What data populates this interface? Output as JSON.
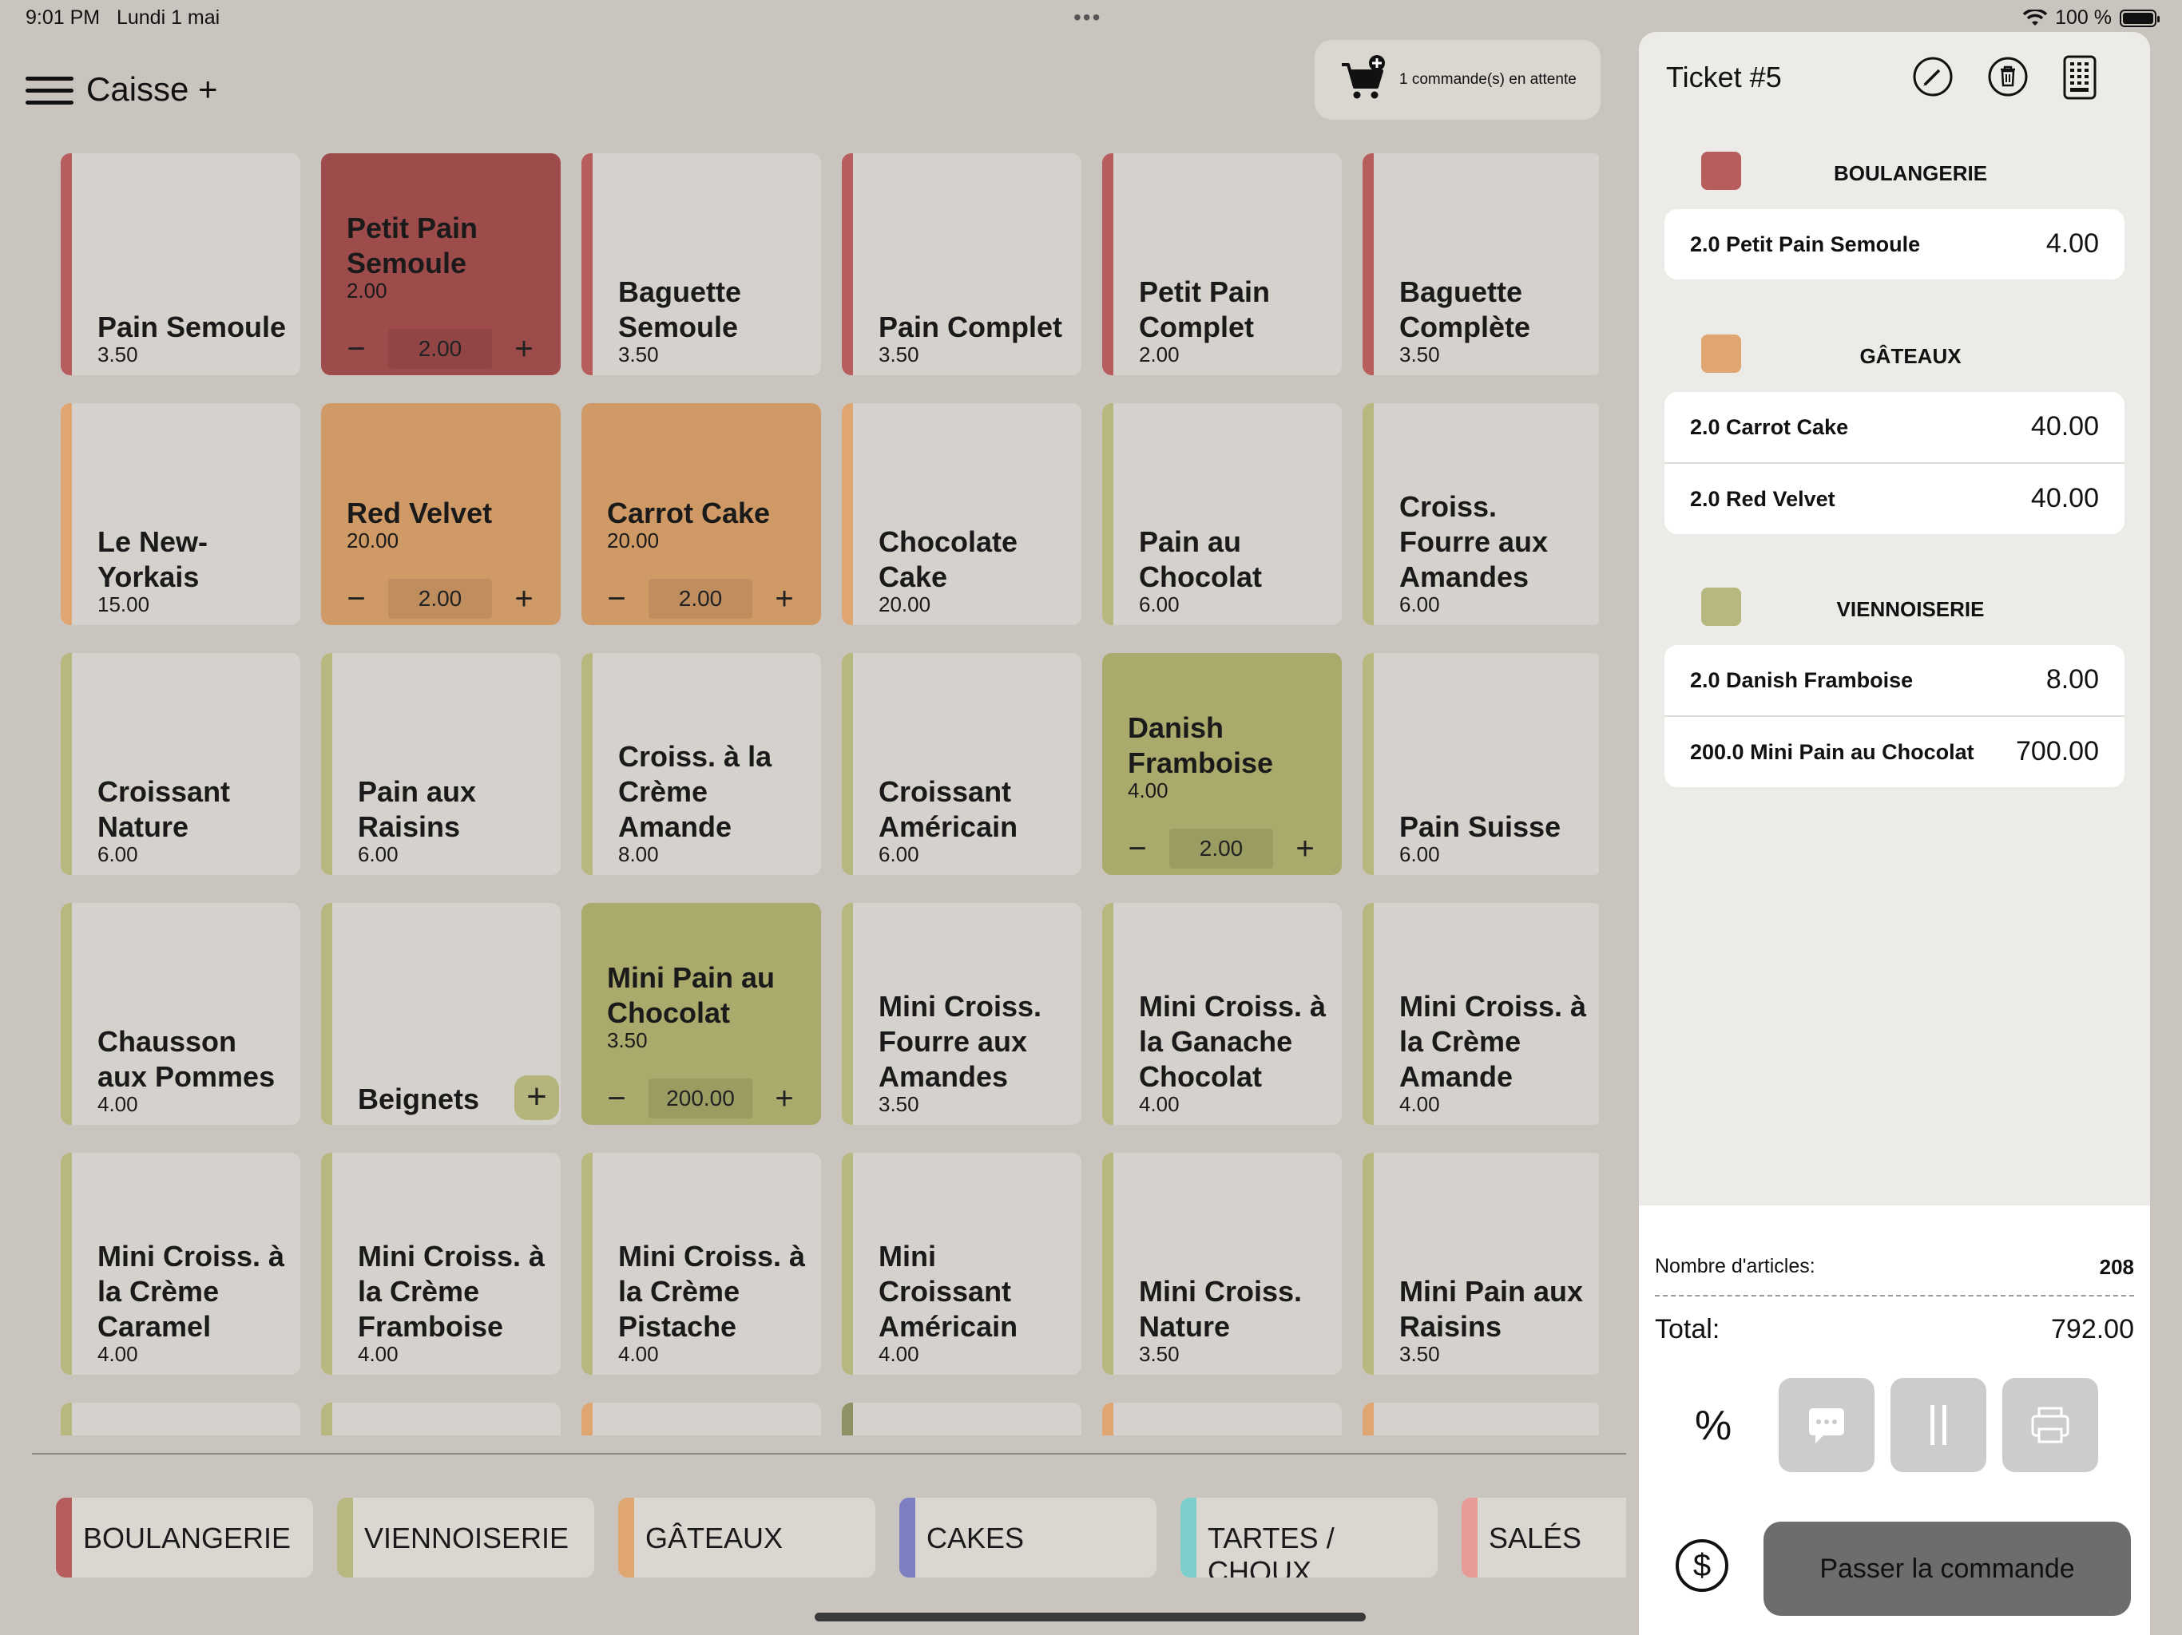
{
  "status": {
    "time": "9:01 PM",
    "date": "Lundi 1 mai",
    "dots": "•••",
    "battery": "100 %"
  },
  "header": {
    "title": "Caisse +",
    "pending": "1 commande(s) en attente"
  },
  "colors": {
    "boulangerie": "#b85d5d",
    "gateaux": "#dfa672",
    "viennoiserie": "#b7b880",
    "cakes": "#7c7fc1",
    "tartes": "#7ccfcb",
    "sales": "#e89a96"
  },
  "tiles": [
    {
      "name": "Pain Semoule",
      "price": "3.50",
      "cat": "boulangerie"
    },
    {
      "name": "Petit Pain Semoule",
      "price": "2.00",
      "cat": "boulangerie",
      "selected": true,
      "qty": "2.00"
    },
    {
      "name": "Baguette Semoule",
      "price": "3.50",
      "cat": "boulangerie"
    },
    {
      "name": "Pain Complet",
      "price": "3.50",
      "cat": "boulangerie"
    },
    {
      "name": "Petit Pain Complet",
      "price": "2.00",
      "cat": "boulangerie"
    },
    {
      "name": "Baguette Complète",
      "price": "3.50",
      "cat": "boulangerie"
    },
    {
      "name": "Le New-Yorkais",
      "price": "15.00",
      "cat": "gateaux"
    },
    {
      "name": "Red Velvet",
      "price": "20.00",
      "cat": "gateaux",
      "selected": true,
      "qty": "2.00"
    },
    {
      "name": "Carrot Cake",
      "price": "20.00",
      "cat": "gateaux",
      "selected": true,
      "qty": "2.00"
    },
    {
      "name": "Chocolate Cake",
      "price": "20.00",
      "cat": "gateaux"
    },
    {
      "name": "Pain au Chocolat",
      "price": "6.00",
      "cat": "viennoiserie"
    },
    {
      "name": "Croiss. Fourre aux Amandes",
      "price": "6.00",
      "cat": "viennoiserie"
    },
    {
      "name": "Croissant Nature",
      "price": "6.00",
      "cat": "viennoiserie"
    },
    {
      "name": "Pain aux Raisins",
      "price": "6.00",
      "cat": "viennoiserie"
    },
    {
      "name": "Croiss. à la Crème Amande",
      "price": "8.00",
      "cat": "viennoiserie"
    },
    {
      "name": "Croissant Américain",
      "price": "6.00",
      "cat": "viennoiserie"
    },
    {
      "name": "Danish Framboise",
      "price": "4.00",
      "cat": "viennoiserie",
      "selected": true,
      "qty": "2.00"
    },
    {
      "name": "Pain Suisse",
      "price": "6.00",
      "cat": "viennoiserie"
    },
    {
      "name": "Chausson aux Pommes",
      "price": "4.00",
      "cat": "viennoiserie"
    },
    {
      "name": "Beignets",
      "price": "",
      "cat": "viennoiserie",
      "add": true
    },
    {
      "name": "Mini Pain au Chocolat",
      "price": "3.50",
      "cat": "viennoiserie",
      "selected": true,
      "qty": "200.00"
    },
    {
      "name": "Mini Croiss. Fourre aux Amandes",
      "price": "3.50",
      "cat": "viennoiserie"
    },
    {
      "name": "Mini Croiss. à la Ganache Chocolat",
      "price": "4.00",
      "cat": "viennoiserie"
    },
    {
      "name": "Mini Croiss. à la Crème Amande",
      "price": "4.00",
      "cat": "viennoiserie"
    },
    {
      "name": "Mini Croiss. à la Crème Caramel",
      "price": "4.00",
      "cat": "viennoiserie"
    },
    {
      "name": "Mini Croiss. à la Crème Framboise",
      "price": "4.00",
      "cat": "viennoiserie"
    },
    {
      "name": "Mini Croiss. à la Crème Pistache",
      "price": "4.00",
      "cat": "viennoiserie"
    },
    {
      "name": "Mini Croissant Américain",
      "price": "4.00",
      "cat": "viennoiserie"
    },
    {
      "name": "Mini Croiss. Nature",
      "price": "3.50",
      "cat": "viennoiserie"
    },
    {
      "name": "Mini Pain aux Raisins",
      "price": "3.50",
      "cat": "viennoiserie"
    },
    {
      "name": "",
      "price": "",
      "cat": "viennoiserie"
    },
    {
      "name": "",
      "price": "",
      "cat": "viennoiserie"
    },
    {
      "name": "",
      "price": "",
      "cat": "gateaux"
    },
    {
      "name": "",
      "price": "",
      "cat": "olive"
    },
    {
      "name": "",
      "price": "",
      "cat": "gateaux"
    },
    {
      "name": "",
      "price": "",
      "cat": "gateaux"
    }
  ],
  "categories": [
    {
      "label": "BOULANGERIE",
      "cat": "boulangerie"
    },
    {
      "label": "VIENNOISERIE",
      "cat": "viennoiserie"
    },
    {
      "label": "GÂTEAUX",
      "cat": "gateaux"
    },
    {
      "label": "CAKES",
      "cat": "cakes"
    },
    {
      "label": "TARTES / CHOUX",
      "cat": "tartes"
    },
    {
      "label": "SALÉS",
      "cat": "sales"
    }
  ],
  "ticket": {
    "title": "Ticket #5",
    "sections": [
      {
        "title": "BOULANGERIE",
        "cat": "boulangerie",
        "lines": [
          {
            "desc": "2.0 Petit Pain Semoule",
            "amount": "4.00"
          }
        ]
      },
      {
        "title": "GÂTEAUX",
        "cat": "gateaux",
        "lines": [
          {
            "desc": "2.0 Carrot Cake",
            "amount": "40.00"
          },
          {
            "desc": "2.0 Red Velvet",
            "amount": "40.00"
          }
        ]
      },
      {
        "title": "VIENNOISERIE",
        "cat": "viennoiserie",
        "lines": [
          {
            "desc": "2.0 Danish Framboise",
            "amount": "8.00"
          },
          {
            "desc": "200.0 Mini Pain au Chocolat",
            "amount": "700.00"
          }
        ]
      }
    ],
    "count_label": "Nombre d'articles:",
    "count": "208",
    "total_label": "Total:",
    "total": "792.00",
    "percent": "%",
    "currency": "$",
    "order_button": "Passer la commande"
  }
}
